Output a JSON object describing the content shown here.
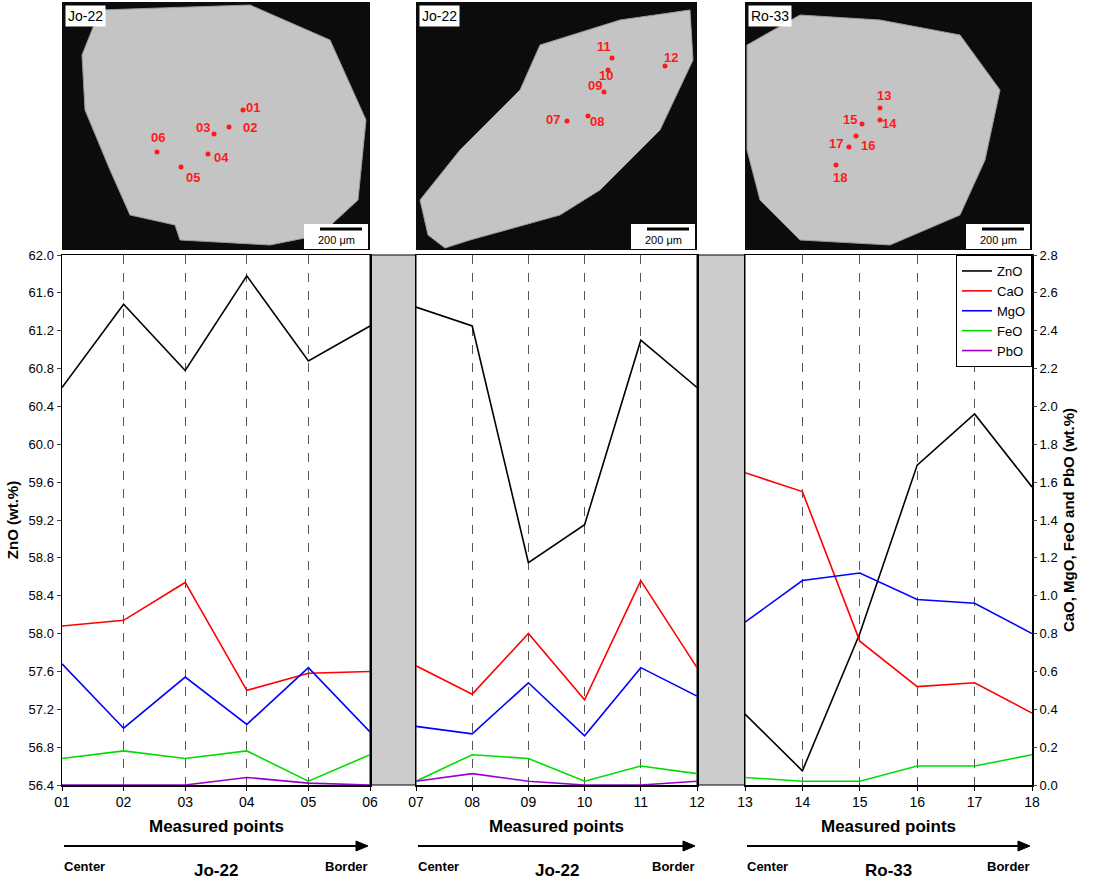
{
  "chart_data": {
    "type": "line",
    "categories": [
      "01",
      "02",
      "03",
      "04",
      "05",
      "06",
      "07",
      "08",
      "09",
      "10",
      "11",
      "12",
      "13",
      "14",
      "15",
      "16",
      "17",
      "18"
    ],
    "series": [
      {
        "name": "ZnO",
        "color": "#000000",
        "values": [
          60.6,
          61.48,
          60.78,
          61.78,
          60.88,
          61.25,
          61.45,
          61.25,
          58.75,
          59.15,
          61.1,
          60.6,
          57.15,
          56.55,
          58.0,
          59.78,
          60.32,
          59.55
        ]
      },
      {
        "name": "CaO",
        "color": "#ff0000",
        "axis": "y2",
        "values": [
          0.84,
          0.87,
          1.07,
          0.5,
          0.59,
          0.6,
          0.63,
          0.48,
          0.8,
          0.45,
          1.08,
          0.62,
          1.65,
          1.55,
          0.76,
          0.52,
          0.54,
          0.38
        ]
      },
      {
        "name": "MgO",
        "color": "#0000ff",
        "axis": "y2",
        "values": [
          0.64,
          0.3,
          0.57,
          0.32,
          0.62,
          0.28,
          0.31,
          0.27,
          0.54,
          0.26,
          0.62,
          0.47,
          0.86,
          1.08,
          1.12,
          0.98,
          0.96,
          0.8
        ]
      },
      {
        "name": "FeO",
        "color": "#00dd00",
        "axis": "y2",
        "values": [
          0.14,
          0.18,
          0.14,
          0.18,
          0.02,
          0.16,
          0.02,
          0.16,
          0.14,
          0.02,
          0.1,
          0.06,
          0.04,
          0.02,
          0.02,
          0.1,
          0.1,
          0.16
        ]
      },
      {
        "name": "PbO",
        "color": "#9900cc",
        "axis": "y2",
        "values": [
          0.0,
          0.0,
          0.0,
          0.04,
          0.01,
          0.0,
          0.02,
          0.06,
          0.02,
          0.0,
          0.0,
          0.02,
          null,
          null,
          null,
          null,
          null,
          null
        ]
      }
    ],
    "ylabel": "ZnO (wt.%)",
    "y2label": "CaO, MgO, FeO and PbO (wt.%)",
    "xlabel": "Measured points",
    "ylim": [
      56.4,
      62.0
    ],
    "yticks": [
      56.4,
      56.8,
      57.2,
      57.6,
      {
        "value": 58,
        "label": "58.0"
      },
      58.4,
      58.8,
      59.2,
      59.6,
      {
        "value": 60,
        "label": "60.0"
      },
      60.4,
      60.8,
      61.2,
      61.6,
      {
        "value": 62,
        "label": "62.0"
      }
    ],
    "y2lim": [
      0,
      2.8
    ],
    "y2ticks": [
      {
        "value": 0,
        "label": "0.0"
      },
      0.2,
      0.4,
      0.6,
      0.8,
      {
        "value": 1,
        "label": "1.0"
      },
      1.2,
      1.4,
      1.6,
      1.8,
      {
        "value": 2,
        "label": "2.0"
      },
      2.2,
      2.4,
      2.6,
      2.8
    ],
    "grid": true,
    "legend": "upper right",
    "annotations": [
      "Center",
      "Border"
    ],
    "panels": [
      {
        "title": "Jo-22",
        "points": [
          "01",
          "02",
          "03",
          "04",
          "05",
          "06"
        ],
        "scale_bar": "200 μm"
      },
      {
        "title": "Jo-22",
        "points": [
          "07",
          "08",
          "09",
          "10",
          "11",
          "12"
        ],
        "scale_bar": "200 μm"
      },
      {
        "title": "Ro-33",
        "points": [
          "13",
          "14",
          "15",
          "16",
          "17",
          "18"
        ],
        "scale_bar": "200 μm"
      }
    ]
  }
}
